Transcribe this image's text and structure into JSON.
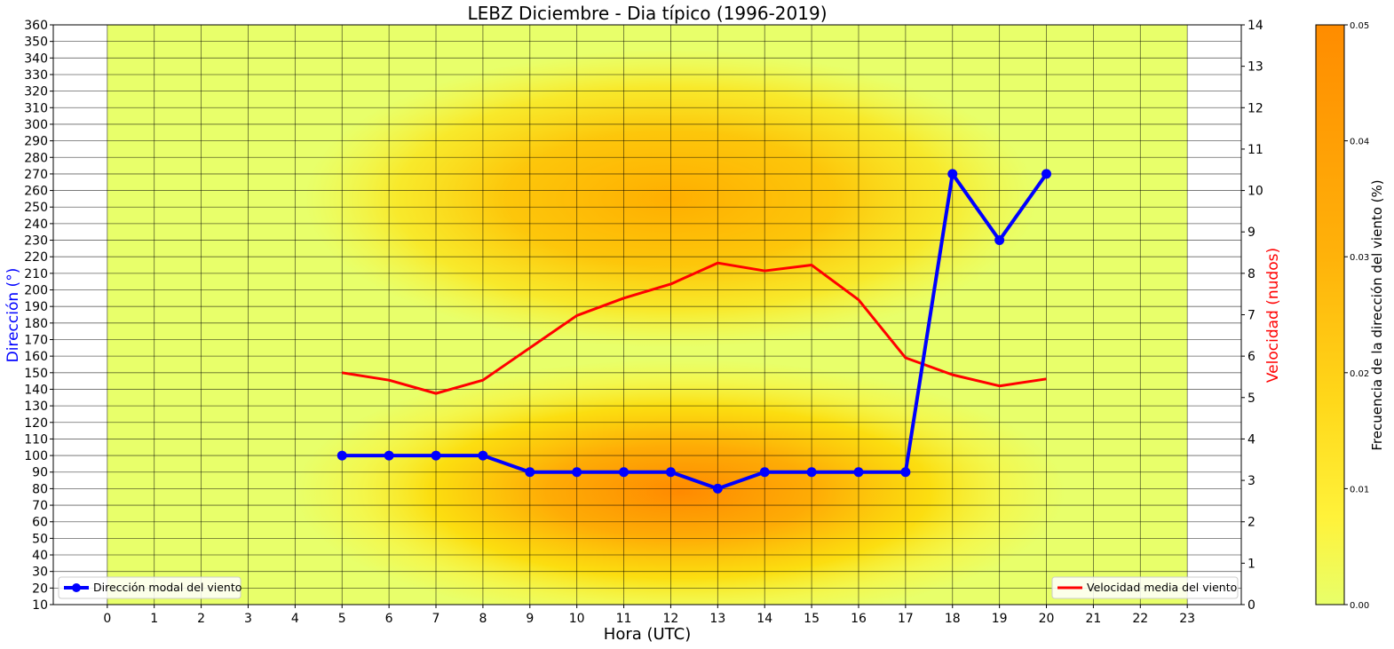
{
  "chart_data": {
    "type": "line",
    "title": "LEBZ Diciembre - Dia típico (1996-2019)",
    "xlabel": "Hora (UTC)",
    "ylabel_left": "Dirección  (°)",
    "ylabel_right": "Velocidad (nudos)",
    "colorbar_label": "Frecuencia de la dirección del viento (%)",
    "x_ticks": [
      0,
      1,
      2,
      3,
      4,
      5,
      6,
      7,
      8,
      9,
      10,
      11,
      12,
      13,
      14,
      15,
      16,
      17,
      18,
      19,
      20,
      21,
      22,
      23
    ],
    "x_range": [
      -1.15,
      24.15
    ],
    "y_left_range": [
      10,
      360
    ],
    "y_left_ticks": [
      10,
      20,
      30,
      40,
      50,
      60,
      70,
      80,
      90,
      100,
      110,
      120,
      130,
      140,
      150,
      160,
      170,
      180,
      190,
      200,
      210,
      220,
      230,
      240,
      250,
      260,
      270,
      280,
      290,
      300,
      310,
      320,
      330,
      340,
      350,
      360
    ],
    "y_right_range": [
      0,
      14
    ],
    "y_right_ticks": [
      0,
      1,
      2,
      3,
      4,
      5,
      6,
      7,
      8,
      9,
      10,
      11,
      12,
      13,
      14
    ],
    "colorbar_range": [
      0,
      0.05
    ],
    "colorbar_ticks": [
      "0.00",
      "0.01",
      "0.02",
      "0.03",
      "0.04",
      "0.05"
    ],
    "grid": true,
    "heatmap_x_extent": [
      0,
      23
    ],
    "colors": {
      "direction": "#0000ff",
      "speed": "#ff0000",
      "heat_low": "#e8ff6a",
      "heat_mid": "#ffe81a",
      "heat_high": "#ff8c00"
    },
    "series": [
      {
        "name": "Dirección modal del viento",
        "axis": "left",
        "x": [
          5,
          6,
          7,
          8,
          9,
          10,
          11,
          12,
          13,
          14,
          15,
          16,
          17,
          18,
          19,
          20
        ],
        "values": [
          100,
          100,
          100,
          100,
          90,
          90,
          90,
          90,
          80,
          90,
          90,
          90,
          90,
          270,
          230,
          270
        ]
      },
      {
        "name": "Velocidad media del viento",
        "axis": "right",
        "x": [
          5,
          6,
          7,
          8,
          9,
          10,
          11,
          12,
          13,
          14,
          15,
          16,
          17,
          18,
          19,
          20
        ],
        "values": [
          5.6,
          5.42,
          5.1,
          5.42,
          6.2,
          6.98,
          7.4,
          7.74,
          8.25,
          8.06,
          8.2,
          7.36,
          5.96,
          5.55,
          5.28,
          5.45
        ]
      }
    ],
    "legend_left": "lower-left",
    "legend_right": "lower-right"
  }
}
